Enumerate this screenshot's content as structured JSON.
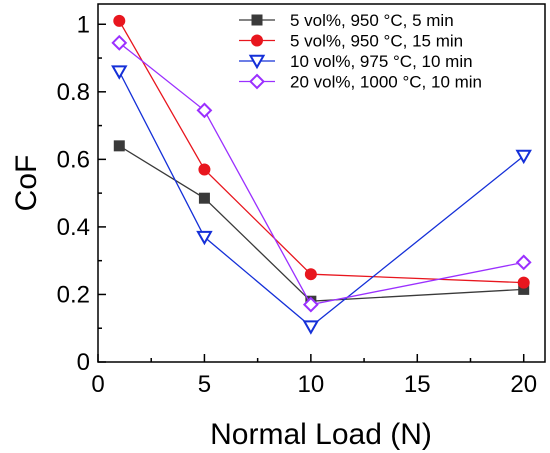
{
  "chart_data": {
    "type": "line",
    "xlabel": "Normal Load (N)",
    "ylabel": "CoF",
    "xlim": [
      0,
      21
    ],
    "ylim": [
      0,
      1.06
    ],
    "x_ticks": [
      0,
      5,
      10,
      15,
      20
    ],
    "y_ticks": [
      0,
      0.2,
      0.4,
      0.6,
      0.8,
      1
    ],
    "y_tick_labels": [
      "0",
      "0.2",
      "0.4",
      "0.6",
      "0.8",
      "1"
    ],
    "grid": false,
    "legend_position": "top-right",
    "series": [
      {
        "name": "5 vol%, 950 °C, 5 min",
        "color": "#3a3a3a",
        "marker": "square",
        "x": [
          1,
          5,
          10,
          20
        ],
        "values": [
          0.64,
          0.485,
          0.18,
          0.215
        ]
      },
      {
        "name": "5 vol%, 950 °C, 15 min",
        "color": "#e8161e",
        "marker": "circle",
        "x": [
          1,
          5,
          10,
          20
        ],
        "values": [
          1.01,
          0.57,
          0.26,
          0.235
        ]
      },
      {
        "name": "10 vol%, 975 °C, 10 min",
        "color": "#1530d8",
        "marker": "triangle-down",
        "x": [
          1,
          5,
          10,
          20
        ],
        "values": [
          0.86,
          0.37,
          0.105,
          0.61
        ]
      },
      {
        "name": "20 vol%, 1000 °C, 10 min",
        "color": "#9b30ff",
        "marker": "diamond",
        "x": [
          1,
          5,
          10,
          20
        ],
        "values": [
          0.945,
          0.745,
          0.17,
          0.295
        ]
      }
    ]
  }
}
